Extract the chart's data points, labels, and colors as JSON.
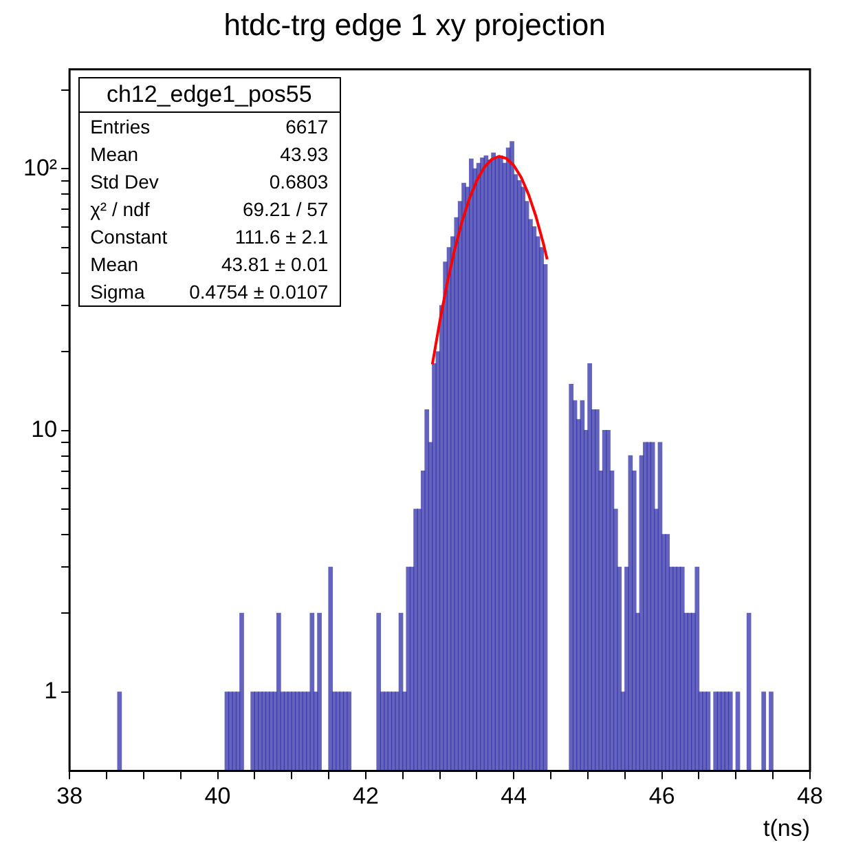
{
  "chart_data": {
    "type": "histogram",
    "title": "htdc-trg edge 1 xy projection",
    "xlabel": "t(ns)",
    "bins": [
      38,
      38.05,
      38.1,
      38.15,
      38.2,
      38.25,
      38.3,
      38.35,
      38.4,
      38.45,
      38.5,
      38.55,
      38.6,
      38.65,
      38.7,
      38.75,
      38.8,
      38.85,
      38.9,
      38.95,
      39,
      39.05,
      39.1,
      39.15,
      39.2,
      39.25,
      39.3,
      39.35,
      39.4,
      39.45,
      39.5,
      39.55,
      39.6,
      39.65,
      39.7,
      39.75,
      39.8,
      39.85,
      39.9,
      39.95,
      40,
      40.05,
      40.1,
      40.15,
      40.2,
      40.25,
      40.3,
      40.35,
      40.4,
      40.45,
      40.5,
      40.55,
      40.6,
      40.65,
      40.7,
      40.75,
      40.8,
      40.85,
      40.9,
      40.95,
      41,
      41.05,
      41.1,
      41.15,
      41.2,
      41.25,
      41.3,
      41.35,
      41.4,
      41.45,
      41.5,
      41.55,
      41.6,
      41.65,
      41.7,
      41.75,
      41.8,
      41.85,
      41.9,
      41.95,
      42,
      42.05,
      42.1,
      42.15,
      42.2,
      42.25,
      42.3,
      42.35,
      42.4,
      42.45,
      42.5,
      42.55,
      42.6,
      42.65,
      42.7,
      42.75,
      42.8,
      42.85,
      42.9,
      42.95,
      43,
      43.05,
      43.1,
      43.15,
      43.2,
      43.25,
      43.3,
      43.35,
      43.4,
      43.45,
      43.5,
      43.55,
      43.6,
      43.65,
      43.7,
      43.75,
      43.8,
      43.85,
      43.9,
      43.95,
      44,
      44.05,
      44.1,
      44.15,
      44.2,
      44.25,
      44.3,
      44.35,
      44.4,
      44.45,
      44.5,
      44.55,
      44.6,
      44.65,
      44.7,
      44.75,
      44.8,
      44.85,
      44.9,
      44.95,
      45,
      45.05,
      45.1,
      45.15,
      45.2,
      45.25,
      45.3,
      45.35,
      45.4,
      45.45,
      45.5,
      45.55,
      45.6,
      45.65,
      45.7,
      45.75,
      45.8,
      45.85,
      45.9,
      45.95,
      46,
      46.05,
      46.1,
      46.15,
      46.2,
      46.25,
      46.3,
      46.35,
      46.4,
      46.45,
      46.5,
      46.55,
      46.6,
      46.65,
      46.7,
      46.75,
      46.8,
      46.85,
      46.9,
      46.95,
      47,
      47.05,
      47.1,
      47.15,
      47.2,
      47.25,
      47.3,
      47.35,
      47.4,
      47.45,
      47.5,
      47.55,
      47.6,
      47.65,
      47.7,
      47.75,
      47.8,
      47.85,
      47.9,
      47.95,
      48
    ],
    "values": [
      null,
      null,
      null,
      null,
      null,
      null,
      null,
      null,
      null,
      null,
      null,
      null,
      null,
      1,
      null,
      null,
      null,
      null,
      null,
      null,
      null,
      null,
      null,
      null,
      null,
      null,
      null,
      null,
      null,
      null,
      null,
      null,
      null,
      null,
      null,
      null,
      null,
      null,
      null,
      null,
      null,
      null,
      1,
      1,
      1,
      1,
      2,
      null,
      null,
      1,
      1,
      1,
      1,
      1,
      1,
      1,
      2,
      1,
      1,
      1,
      1,
      1,
      1,
      1,
      1,
      2,
      1,
      2,
      null,
      null,
      3,
      1,
      1,
      1,
      1,
      1,
      null,
      null,
      null,
      null,
      null,
      null,
      null,
      2,
      1,
      1,
      1,
      1,
      1,
      2,
      1,
      3,
      3,
      5,
      5,
      7,
      12,
      9,
      18,
      20,
      30,
      44,
      50,
      55,
      65,
      75,
      88,
      85,
      109,
      100,
      105,
      110,
      112,
      108,
      115,
      110,
      112,
      105,
      120,
      127,
      95,
      90,
      85,
      75,
      64,
      60,
      55,
      50,
      43,
      null,
      null,
      null,
      null,
      null,
      null,
      15,
      13,
      11,
      13,
      10,
      18,
      12,
      12,
      7,
      10,
      10,
      7,
      5,
      3,
      1,
      3,
      8,
      7,
      2,
      8,
      9,
      9,
      9,
      5,
      9,
      4,
      4,
      3,
      3,
      3,
      3,
      2,
      2,
      2,
      3,
      1,
      1,
      1,
      null,
      1,
      1,
      1,
      1,
      1,
      null,
      1,
      null,
      null,
      2,
      null,
      null,
      null,
      1,
      null,
      1,
      null,
      null,
      null,
      null,
      null,
      null,
      null,
      null,
      null,
      null
    ],
    "color": "#3030a8",
    "series": [
      {
        "type": "line",
        "color": "#ff0000",
        "x": [
          42.9,
          43.0,
          43.1,
          43.2,
          43.3,
          43.4,
          43.5,
          43.6,
          43.7,
          43.8,
          43.9,
          44.0,
          44.1,
          44.2,
          44.3,
          44.4,
          44.45
        ],
        "values": [
          17.9,
          26.1,
          36.6,
          49.0,
          62.8,
          76.9,
          90.2,
          101.2,
          108.7,
          111.6,
          109.6,
          103.0,
          92.7,
          79.7,
          65.6,
          51.7,
          45.1
        ]
      }
    ],
    "xlim": [
      38,
      48
    ],
    "xticks": [
      38,
      {
        "value": 38.5,
        "label": null
      },
      {
        "value": 39,
        "label": null
      },
      {
        "value": 39.5,
        "label": null
      },
      40,
      {
        "value": 40.5,
        "label": null
      },
      {
        "value": 41,
        "label": null
      },
      {
        "value": 41.5,
        "label": null
      },
      42,
      {
        "value": 42.5,
        "label": null
      },
      {
        "value": 43,
        "label": null
      },
      {
        "value": 43.5,
        "label": null
      },
      44,
      {
        "value": 44.5,
        "label": null
      },
      {
        "value": 45,
        "label": null
      },
      {
        "value": 45.5,
        "label": null
      },
      46,
      {
        "value": 46.5,
        "label": null
      },
      {
        "value": 47,
        "label": null
      },
      {
        "value": 47.5,
        "label": null
      },
      48
    ],
    "ylim": [
      0.5,
      240
    ],
    "yticks": [
      1,
      {
        "value": 2,
        "label": null
      },
      {
        "value": 3,
        "label": null
      },
      {
        "value": 4,
        "label": null
      },
      {
        "value": 5,
        "label": null
      },
      {
        "value": 6,
        "label": null
      },
      {
        "value": 7,
        "label": null
      },
      {
        "value": 8,
        "label": null
      },
      {
        "value": 9,
        "label": null
      },
      10,
      {
        "value": 20,
        "label": null
      },
      {
        "value": 30,
        "label": null
      },
      {
        "value": 40,
        "label": null
      },
      {
        "value": 50,
        "label": null
      },
      {
        "value": 60,
        "label": null
      },
      {
        "value": 70,
        "label": null
      },
      {
        "value": 80,
        "label": null
      },
      {
        "value": 90,
        "label": null
      },
      {
        "value": 100,
        "label": "10²"
      },
      {
        "value": 200,
        "label": null
      }
    ],
    "log": true,
    "annotations": [
      "ch12_edge1_pos55",
      "Entries",
      "6617",
      "Mean",
      "43.93",
      "Std Dev",
      "0.6803",
      "χ² / ndf",
      "69.21 / 57",
      "Constant",
      "111.6 ± 2.1",
      "Mean",
      "43.81 ± 0.01",
      "Sigma",
      "0.4754 ± 0.0107"
    ]
  }
}
